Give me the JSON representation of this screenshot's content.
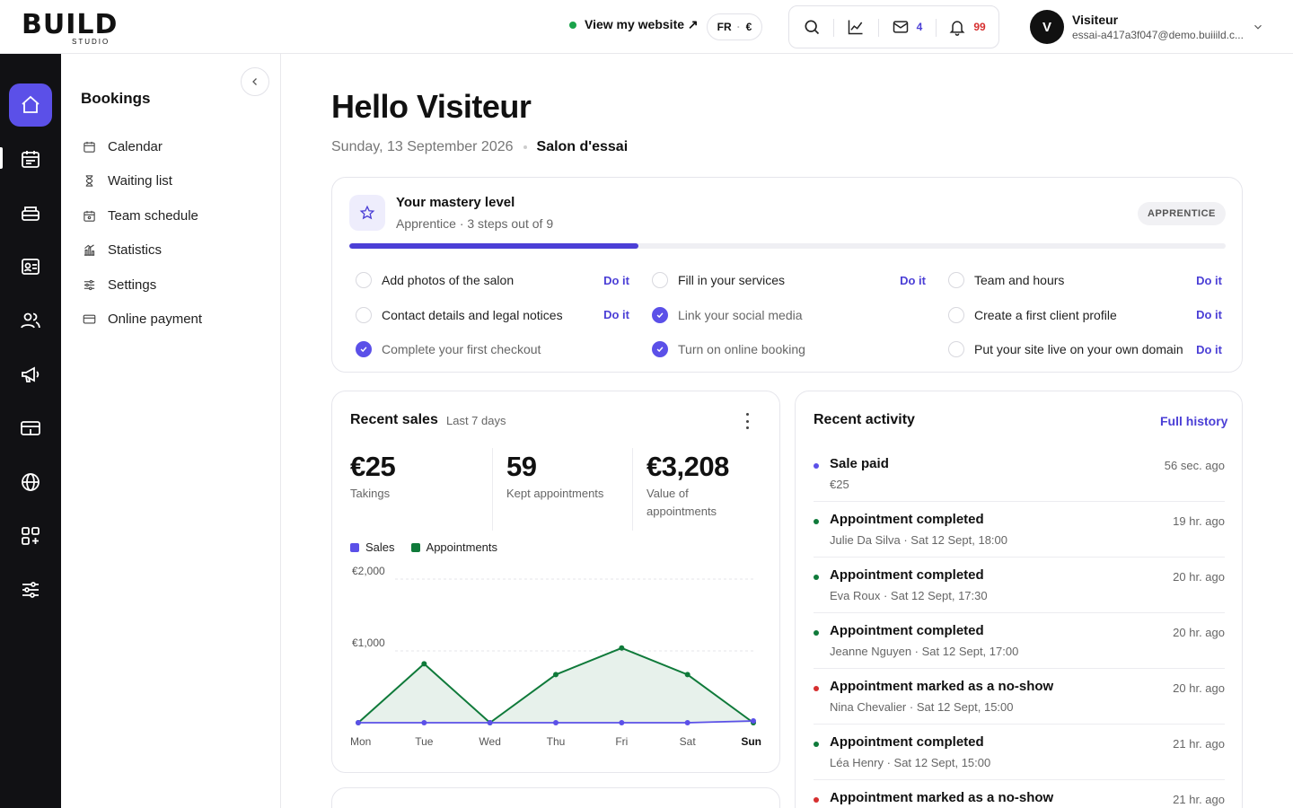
{
  "brand": {
    "logo_text": "BUILD",
    "logo_sub": "STUDIO"
  },
  "header": {
    "view_site": "View my website ↗",
    "lang": "FR",
    "currency": "€",
    "mail_count": "4",
    "notif_count": "99",
    "user_initial": "V",
    "user_name": "Visiteur",
    "user_email": "essai-a417a3f047@demo.buiiild.c..."
  },
  "sidebar": {
    "title": "Bookings",
    "items": [
      {
        "label": "Calendar",
        "icon": "calendar-icon"
      },
      {
        "label": "Waiting list",
        "icon": "hourglass-icon"
      },
      {
        "label": "Team schedule",
        "icon": "team-calendar-icon"
      },
      {
        "label": "Statistics",
        "icon": "stats-icon"
      },
      {
        "label": "Settings",
        "icon": "sliders-icon"
      },
      {
        "label": "Online payment",
        "icon": "card-icon"
      }
    ]
  },
  "rail": [
    "home-icon",
    "calendar-icon",
    "register-icon",
    "contact-card-icon",
    "clients-icon",
    "megaphone-icon",
    "payment-icon",
    "globe-icon",
    "apps-icon",
    "settings-icon"
  ],
  "main": {
    "greeting": "Hello Visiteur",
    "date": "Sunday, 13 September 2026",
    "salon": "Salon d'essai"
  },
  "mastery": {
    "title": "Your mastery level",
    "subtitle": "Apprentice · 3 steps out of 9",
    "badge": "APPRENTICE",
    "progress": 0.33,
    "do_it": "Do it",
    "tasks": [
      {
        "label": "Add photos of the salon",
        "done": false
      },
      {
        "label": "Fill in your services",
        "done": false
      },
      {
        "label": "Team and hours",
        "done": false
      },
      {
        "label": "Contact details and legal notices",
        "done": false
      },
      {
        "label": "Link your social media",
        "done": true
      },
      {
        "label": "Create a first client profile",
        "done": false
      },
      {
        "label": "Complete your first checkout",
        "done": true
      },
      {
        "label": "Turn on online booking",
        "done": true
      },
      {
        "label": "Put your site live on your own domain",
        "done": false
      }
    ]
  },
  "sales": {
    "title": "Recent sales",
    "period": "Last 7 days",
    "kpis": [
      {
        "value": "€25",
        "label": "Takings"
      },
      {
        "value": "59",
        "label": "Kept appointments"
      },
      {
        "value": "€3,208",
        "label": "Value of appointments"
      }
    ],
    "legend_sales": "Sales",
    "legend_appointments": "Appointments"
  },
  "chart_data": {
    "type": "area",
    "categories": [
      "Mon",
      "Tue",
      "Wed",
      "Thu",
      "Fri",
      "Sat",
      "Sun"
    ],
    "ylim": [
      0,
      2000
    ],
    "yticks": [
      "€1,000",
      "€2,000"
    ],
    "ytick_values": [
      1000,
      2000
    ],
    "grid": true,
    "legend": "top-left",
    "series": [
      {
        "name": "Sales",
        "color": "#5b50e8",
        "values": [
          0,
          0,
          0,
          0,
          0,
          0,
          25
        ]
      },
      {
        "name": "Appointments",
        "color": "#0f7a3a",
        "values": [
          0,
          820,
          0,
          670,
          1040,
          670,
          0
        ]
      }
    ]
  },
  "activity": {
    "title": "Recent activity",
    "link": "Full history",
    "items": [
      {
        "title": "Sale paid",
        "detail": "€25",
        "ago": "56 sec. ago",
        "color": "#5b50e8"
      },
      {
        "title": "Appointment completed",
        "detail": "Julie Da Silva · Sat 12 Sept, 18:00",
        "ago": "19 hr. ago",
        "color": "#0f7a3a"
      },
      {
        "title": "Appointment completed",
        "detail": "Eva Roux · Sat 12 Sept, 17:30",
        "ago": "20 hr. ago",
        "color": "#0f7a3a"
      },
      {
        "title": "Appointment completed",
        "detail": "Jeanne Nguyen · Sat 12 Sept, 17:00",
        "ago": "20 hr. ago",
        "color": "#0f7a3a"
      },
      {
        "title": "Appointment marked as a no-show",
        "detail": "Nina Chevalier · Sat 12 Sept, 15:00",
        "ago": "20 hr. ago",
        "color": "#d62f2f"
      },
      {
        "title": "Appointment completed",
        "detail": "Léa Henry · Sat 12 Sept, 15:00",
        "ago": "21 hr. ago",
        "color": "#0f7a3a"
      },
      {
        "title": "Appointment marked as a no-show",
        "detail": "",
        "ago": "21 hr. ago",
        "color": "#d62f2f"
      }
    ]
  }
}
